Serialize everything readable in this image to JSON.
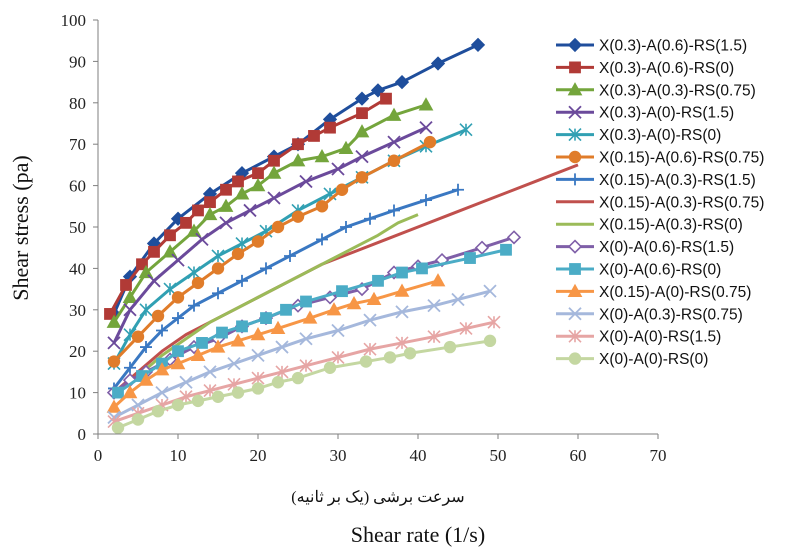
{
  "chart_data": {
    "type": "line",
    "title": "",
    "xlabel": "Shear rate (1/s)",
    "xlabel_persian": "سرعت برشی (یک بر ثانیه)",
    "ylabel": "Shear stress (pa)",
    "xlim": [
      0,
      70
    ],
    "ylim": [
      0,
      100
    ],
    "x_ticks": [
      0,
      10,
      20,
      30,
      40,
      50,
      60,
      70
    ],
    "y_ticks": [
      0,
      10,
      20,
      30,
      40,
      50,
      60,
      70,
      80,
      90,
      100
    ],
    "grid": false,
    "legend_position": "right",
    "series": [
      {
        "name": "X(0.3)-A(0.6)-RS(1.5)",
        "color": "#1f4e9c",
        "marker": "diamond",
        "filled": true,
        "x": [
          2,
          4,
          7,
          10,
          14,
          18,
          22,
          25,
          29,
          33,
          35,
          38,
          42.5,
          47.5
        ],
        "y": [
          29,
          38,
          46,
          52,
          58,
          63,
          67,
          70,
          76,
          81,
          83,
          85,
          89.5,
          94
        ]
      },
      {
        "name": "X(0.3)-A(0.6)-RS(0)",
        "color": "#b13a36",
        "marker": "square",
        "filled": true,
        "x": [
          1.5,
          3.5,
          5.5,
          7,
          9,
          11,
          12.5,
          14,
          16,
          17.5,
          20,
          22,
          25,
          27,
          29,
          33,
          36
        ],
        "y": [
          29,
          36,
          41,
          44,
          48,
          51,
          54,
          56,
          59,
          61,
          63,
          66,
          70,
          72,
          74,
          77.5,
          81
        ]
      },
      {
        "name": "X(0.3)-A(0.3)-RS(0.75)",
        "color": "#74a53c",
        "marker": "triangle",
        "filled": true,
        "x": [
          2,
          4,
          6,
          9,
          12,
          14,
          16,
          18,
          20,
          22,
          25,
          28,
          31,
          33,
          37,
          41
        ],
        "y": [
          27,
          33,
          39,
          44,
          49,
          53,
          55,
          58,
          60,
          63,
          66,
          67,
          69,
          73,
          77,
          79.5
        ]
      },
      {
        "name": "X(0.3)-A(0)-RS(1.5)",
        "color": "#6b4a9b",
        "marker": "x",
        "filled": false,
        "x": [
          2,
          4,
          7,
          10,
          13,
          16,
          19,
          22,
          26,
          30,
          33,
          37,
          41
        ],
        "y": [
          22,
          30,
          37,
          42,
          47,
          51,
          54,
          57,
          61,
          64,
          67,
          70.5,
          74
        ]
      },
      {
        "name": "X(0.3)-A(0)-RS(0)",
        "color": "#31a0b3",
        "marker": "star",
        "filled": false,
        "x": [
          2,
          4,
          6,
          9,
          12,
          15,
          18,
          21,
          25,
          29,
          33,
          37,
          41,
          46
        ],
        "y": [
          17,
          24,
          30,
          35,
          39,
          43,
          46,
          49,
          54,
          58,
          62,
          66,
          69.5,
          73.5
        ]
      },
      {
        "name": "X(0.15)-A(0.6)-RS(0.75)",
        "color": "#e07c2a",
        "marker": "circle",
        "filled": true,
        "x": [
          2,
          5,
          7.5,
          10,
          12.5,
          15,
          17.5,
          20,
          22.5,
          25,
          28,
          30.5,
          33,
          37,
          41.5
        ],
        "y": [
          17.5,
          23.5,
          28.5,
          33,
          36.5,
          40,
          43.5,
          46.5,
          50,
          52.5,
          55,
          59,
          62,
          66,
          70.5
        ]
      },
      {
        "name": "X(0.15)-A(0.3)-RS(1.5)",
        "color": "#3a78c2",
        "marker": "plus",
        "filled": false,
        "x": [
          2,
          4,
          6,
          8,
          10,
          12,
          15,
          18,
          21,
          24,
          28,
          31,
          34,
          37,
          41,
          45
        ],
        "y": [
          11,
          16,
          21,
          25,
          28,
          31,
          34,
          37,
          40,
          43,
          47,
          50,
          52,
          54,
          56.5,
          59
        ]
      },
      {
        "name": "X(0.15)-A(0.3)-RS(0.75)",
        "color": "#c0504d",
        "marker": "none",
        "filled": false,
        "x": [
          2,
          5,
          8,
          11,
          14,
          17,
          20,
          24,
          28,
          32,
          36,
          40,
          44,
          48,
          52,
          56,
          60
        ],
        "y": [
          10,
          15,
          20,
          24,
          27,
          30,
          33,
          37,
          41,
          44,
          47,
          50,
          53,
          56,
          59,
          62,
          65
        ]
      },
      {
        "name": "X(0.15)-A(0.3)-RS(0)",
        "color": "#9bbb59",
        "marker": "none",
        "filled": false,
        "x": [
          2,
          5,
          8,
          11,
          14,
          17,
          20,
          23,
          26,
          29,
          32,
          35,
          37.5,
          40
        ],
        "y": [
          9,
          14,
          19,
          23,
          27,
          30,
          33,
          36,
          39,
          42,
          45,
          48,
          51,
          53
        ]
      },
      {
        "name": "X(0)-A(0.6)-RS(1.5)",
        "color": "#7f5fa8",
        "marker": "diamond",
        "filled": false,
        "x": [
          2,
          4,
          6,
          9,
          12,
          15,
          18,
          21,
          25,
          29,
          33,
          37,
          40,
          43,
          48,
          52
        ],
        "y": [
          10,
          13,
          15,
          18,
          21,
          23,
          26,
          28,
          31,
          33,
          35,
          39,
          40.5,
          42,
          45,
          47.5
        ]
      },
      {
        "name": "X(0)-A(0.6)-RS(0)",
        "color": "#4bacc6",
        "marker": "square",
        "filled": true,
        "x": [
          2.5,
          5.5,
          8,
          10,
          13,
          15.5,
          18,
          21,
          23.5,
          26,
          30.5,
          35,
          38,
          40.5,
          46.5,
          51
        ],
        "y": [
          10,
          14,
          17,
          20,
          22,
          24.5,
          26,
          28,
          30,
          32,
          34.5,
          37,
          39,
          40,
          42.5,
          44.5
        ]
      },
      {
        "name": "X(0.15)-A(0)-RS(0.75)",
        "color": "#f79646",
        "marker": "triangle",
        "filled": true,
        "x": [
          2,
          4,
          6,
          8,
          10,
          12.5,
          15,
          17.5,
          20,
          22.5,
          26.5,
          29.5,
          32,
          34.5,
          38,
          42.5
        ],
        "y": [
          6.5,
          10,
          13,
          15.5,
          17,
          19,
          21,
          22.5,
          24,
          25.5,
          28,
          30,
          31.5,
          32.5,
          34.5,
          37
        ]
      },
      {
        "name": "X(0)-A(0.3)-RS(0.75)",
        "color": "#a5b8dc",
        "marker": "x",
        "filled": false,
        "x": [
          2,
          5,
          8,
          11,
          14,
          17,
          20,
          23,
          26,
          30,
          34,
          38,
          42,
          45,
          49
        ],
        "y": [
          4,
          7,
          10,
          12.5,
          15,
          17,
          19,
          21,
          23,
          25,
          27.5,
          29.5,
          31,
          32.5,
          34.5
        ]
      },
      {
        "name": "X(0)-A(0)-RS(1.5)",
        "color": "#e6a5a4",
        "marker": "star",
        "filled": false,
        "x": [
          2,
          5,
          8,
          11,
          14,
          17,
          20,
          23,
          26,
          30,
          34,
          38,
          42,
          46,
          49.5
        ],
        "y": [
          3,
          5,
          7,
          9,
          10.5,
          12,
          13.5,
          15,
          16.5,
          18.5,
          20.5,
          22,
          23.5,
          25.5,
          27
        ]
      },
      {
        "name": "X(0)-A(0)-RS(0)",
        "color": "#c4d7a1",
        "marker": "circle",
        "filled": true,
        "x": [
          2.5,
          5,
          7.5,
          10,
          12.5,
          15,
          17.5,
          20,
          22.5,
          25,
          29,
          33.5,
          36.5,
          39,
          44,
          49
        ],
        "y": [
          1.5,
          3.5,
          5.5,
          7,
          8,
          9,
          10,
          11,
          12.5,
          13.5,
          16,
          17.5,
          18.5,
          19.5,
          21,
          22.5
        ]
      }
    ]
  }
}
